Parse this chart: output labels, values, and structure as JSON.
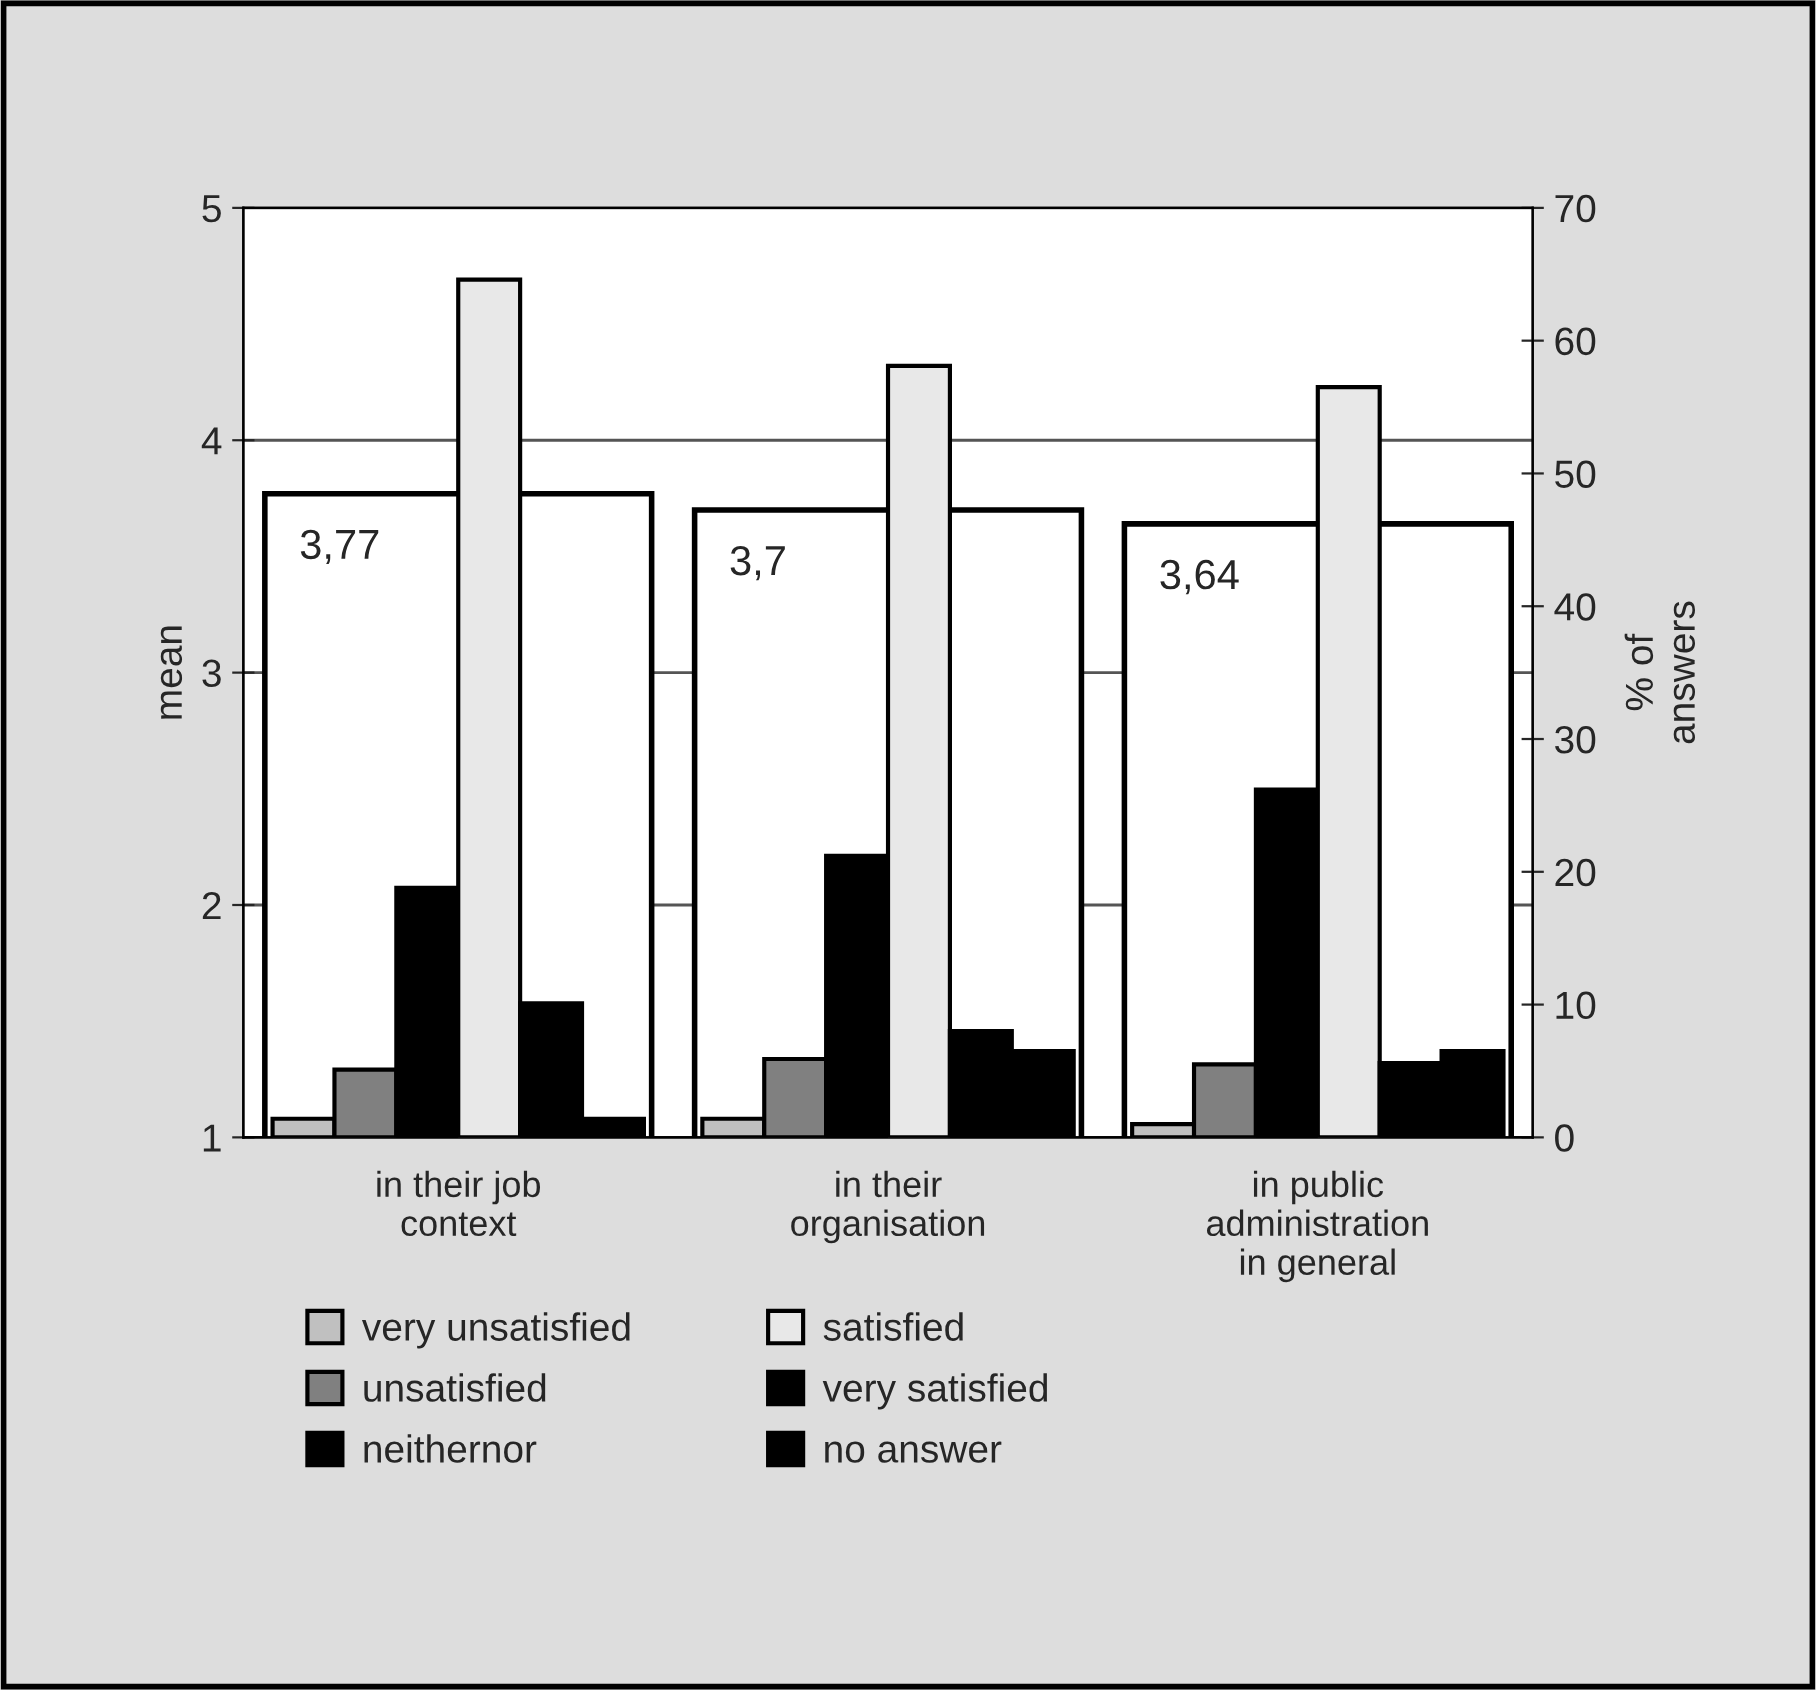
{
  "chart_data": {
    "type": "bar",
    "ylabel": "mean",
    "y2label": "% of\nanswers",
    "categories": [
      "in their job\ncontext",
      "in their\norganisation",
      "in public\nadministration\nin general"
    ],
    "series": [
      {
        "color": "#ffffff",
        "values": [
          3.77,
          3.7,
          3.64
        ],
        "value_labels": [
          "3,77",
          "3,7",
          "3,64"
        ]
      },
      {
        "name": "very unsatisfied",
        "color": "#c0c0c0",
        "axis": "y2",
        "values": [
          1.4,
          1.4,
          1.0
        ]
      },
      {
        "name": "unsatisfied",
        "color": "#808080",
        "axis": "y2",
        "values": [
          5.1,
          5.9,
          5.5
        ]
      },
      {
        "name": "neithernor",
        "color": "#000000",
        "axis": "y2",
        "values": [
          18.8,
          21.2,
          26.2
        ]
      },
      {
        "name": "satisfied",
        "color": "#e8e8e8",
        "axis": "y2",
        "values": [
          64.6,
          58.1,
          56.5
        ]
      },
      {
        "name": "very satisfied",
        "color": "#000000",
        "axis": "y2",
        "values": [
          10.1,
          8.0,
          5.6
        ]
      },
      {
        "name": "no answer",
        "color": "#000000",
        "axis": "y2",
        "values": [
          1.4,
          6.5,
          6.5
        ]
      }
    ],
    "ylim": [
      1,
      5
    ],
    "yticks": [
      1,
      2,
      3,
      4,
      5
    ],
    "y2lim": [
      0,
      70
    ],
    "y2ticks": [
      0,
      10,
      20,
      30,
      40,
      50,
      60,
      70
    ],
    "grid": "y",
    "legend": "bottom"
  }
}
